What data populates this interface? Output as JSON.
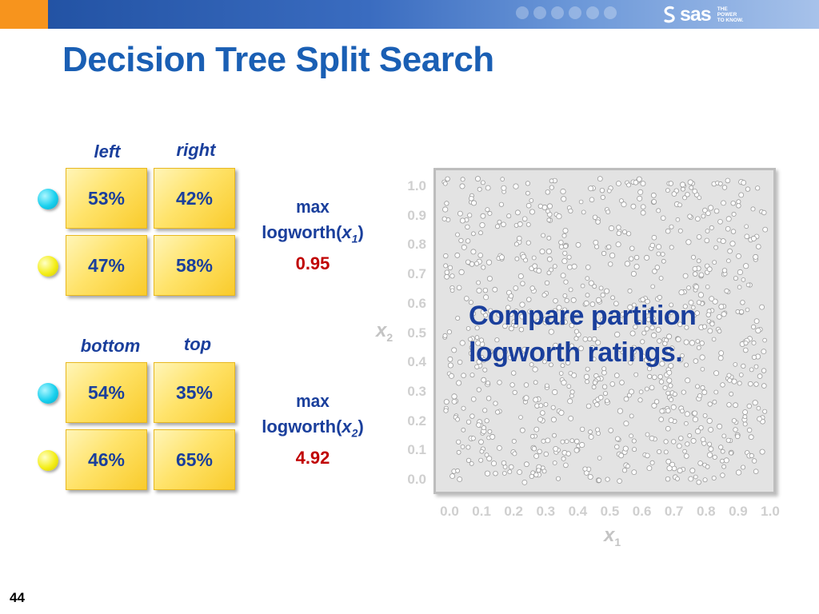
{
  "slide": {
    "title": "Decision Tree Split Search",
    "page_number": "44",
    "brand": {
      "name": "sas",
      "tagline_lines": [
        "THE",
        "POWER",
        "TO KNOW."
      ]
    },
    "colors": {
      "title": "#1a5fb4",
      "text": "#1a3f9c",
      "value": "#c00000",
      "cell": "#ffe36a",
      "ball_cyan": "#19d0ee",
      "ball_yellow": "#f4ee1a"
    }
  },
  "split_x1": {
    "labels": [
      "left",
      "right"
    ],
    "rows": [
      {
        "ball": "cyan",
        "values": [
          "53%",
          "42%"
        ]
      },
      {
        "ball": "yellow",
        "values": [
          "47%",
          "58%"
        ]
      }
    ],
    "logworth": {
      "max_label": "max",
      "prefix": "logworth(",
      "var": "x",
      "sub": "1",
      "suffix": ")",
      "value": "0.95"
    }
  },
  "split_x2": {
    "labels": [
      "bottom",
      "top"
    ],
    "rows": [
      {
        "ball": "cyan",
        "values": [
          "54%",
          "35%"
        ]
      },
      {
        "ball": "yellow",
        "values": [
          "46%",
          "65%"
        ]
      }
    ],
    "logworth": {
      "max_label": "max",
      "prefix": "logworth(",
      "var": "x",
      "sub": "2",
      "suffix": ")",
      "value": "4.92"
    }
  },
  "plot": {
    "y_ticks": [
      "1.0",
      "0.9",
      "0.8",
      "0.7",
      "0.6",
      "0.5",
      "0.4",
      "0.3",
      "0.2",
      "0.1",
      "0.0"
    ],
    "x_ticks": [
      "0.0",
      "0.1",
      "0.2",
      "0.3",
      "0.4",
      "0.5",
      "0.6",
      "0.7",
      "0.8",
      "0.9",
      "1.0"
    ],
    "x_label": {
      "var": "x",
      "sub": "1"
    },
    "y_label": {
      "var": "x",
      "sub": "2"
    },
    "callout_lines": [
      "Compare partition",
      "logworth ratings."
    ]
  }
}
